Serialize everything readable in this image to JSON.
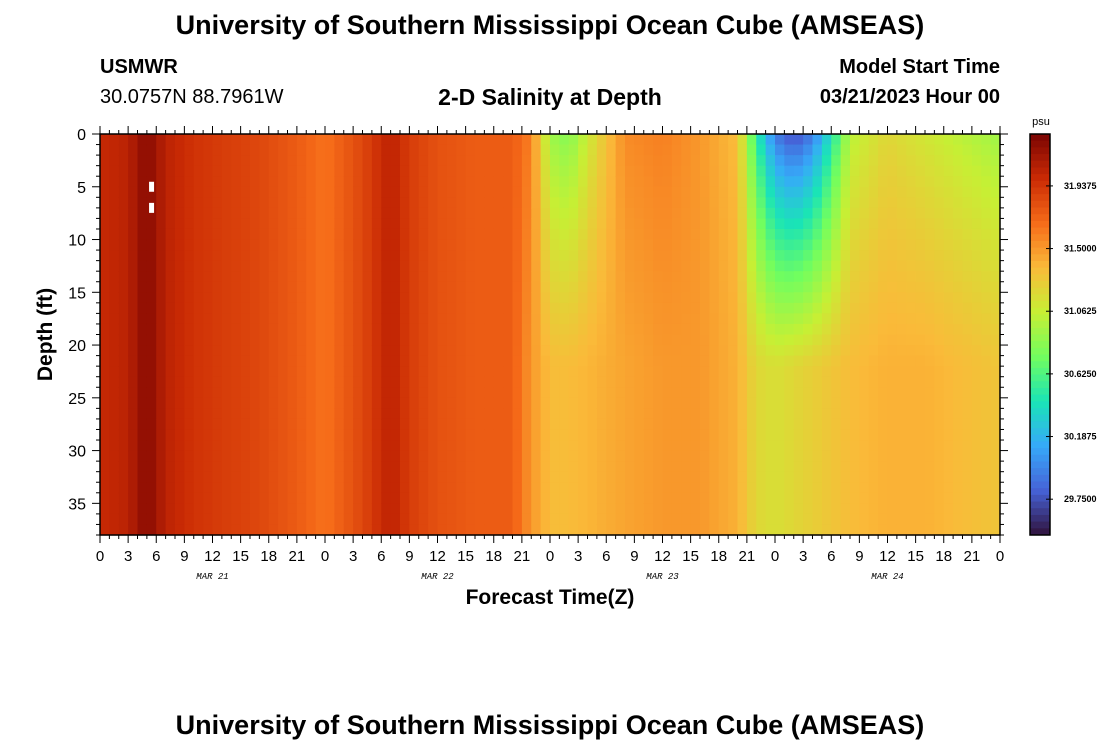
{
  "header": {
    "title": "University of Southern Mississippi Ocean Cube (AMSEAS)",
    "station": "USMWR",
    "coords": "30.0757N  88.7961W",
    "plot_title": "2-D Salinity at Depth",
    "model_start_label": "Model Start Time",
    "model_start_time": "03/21/2023 Hour 00"
  },
  "footer": {
    "title": "University of Southern Mississippi Ocean Cube (AMSEAS)"
  },
  "chart_data": {
    "type": "heatmap",
    "title": "2-D Salinity at Depth",
    "xlabel": "Forecast Time(Z)",
    "ylabel": "Depth (ft)",
    "x_range_hours": [
      0,
      96
    ],
    "y_range_ft": [
      0,
      38
    ],
    "y_ticks": [
      "0",
      "5",
      "10",
      "15",
      "20",
      "25",
      "30",
      "35"
    ],
    "y_tick_values": [
      0,
      5,
      10,
      15,
      20,
      25,
      30,
      35
    ],
    "x_ticks": [
      "0",
      "3",
      "6",
      "9",
      "12",
      "15",
      "18",
      "21",
      "0",
      "3",
      "6",
      "9",
      "12",
      "15",
      "18",
      "21",
      "0",
      "3",
      "6",
      "9",
      "12",
      "15",
      "18",
      "21",
      "0",
      "3",
      "6",
      "9",
      "12",
      "15",
      "18",
      "21",
      "0"
    ],
    "date_labels": [
      "MAR 21",
      "MAR 22",
      "MAR 23",
      "MAR 24"
    ],
    "date_label_hours": [
      12,
      36,
      60,
      84
    ],
    "colorbar": {
      "unit": "psu",
      "min": 29.5,
      "max": 32.3,
      "ticks": [
        "31.9375",
        "31.5000",
        "31.0625",
        "30.6250",
        "30.1875",
        "29.7500"
      ],
      "tick_values": [
        31.9375,
        31.5,
        31.0625,
        30.625,
        30.1875,
        29.75
      ],
      "colors": [
        "#30123b",
        "#4662d7",
        "#36aaf9",
        "#1ae4b6",
        "#72fe5e",
        "#c7ef34",
        "#faba39",
        "#f66b19",
        "#ca2a04",
        "#7a0403"
      ]
    },
    "surface_salinity_by_hour": {
      "hours": [
        0,
        3,
        5,
        7,
        10,
        13,
        17,
        21,
        24,
        28,
        31,
        33,
        36,
        40,
        44,
        46,
        48,
        50,
        53,
        56,
        60,
        64,
        68,
        70,
        72,
        74,
        76,
        78,
        80,
        84,
        88,
        92,
        96
      ],
      "values": [
        32.0,
        32.05,
        32.25,
        32.05,
        31.95,
        31.9,
        31.85,
        31.75,
        31.65,
        31.85,
        32.05,
        31.9,
        31.8,
        31.75,
        31.75,
        31.6,
        30.9,
        30.8,
        31.2,
        31.55,
        31.6,
        31.5,
        31.35,
        30.5,
        29.9,
        29.7,
        29.9,
        30.4,
        31.0,
        31.2,
        31.1,
        31.0,
        30.9
      ]
    },
    "bottom_salinity_by_hour": {
      "hours": [
        0,
        3,
        5,
        7,
        10,
        13,
        17,
        21,
        24,
        28,
        31,
        33,
        36,
        40,
        44,
        46,
        48,
        50,
        53,
        56,
        60,
        64,
        68,
        70,
        72,
        74,
        76,
        78,
        80,
        84,
        88,
        92,
        96
      ],
      "values": [
        32.0,
        32.05,
        32.25,
        32.05,
        31.95,
        31.9,
        31.85,
        31.75,
        31.65,
        31.85,
        32.05,
        31.9,
        31.8,
        31.75,
        31.75,
        31.5,
        31.35,
        31.35,
        31.4,
        31.45,
        31.5,
        31.5,
        31.4,
        31.2,
        31.15,
        31.2,
        31.25,
        31.3,
        31.35,
        31.4,
        31.4,
        31.35,
        31.3
      ]
    },
    "missing_data_hours_depths": [
      [
        5.5,
        5
      ],
      [
        5.5,
        7
      ]
    ]
  }
}
